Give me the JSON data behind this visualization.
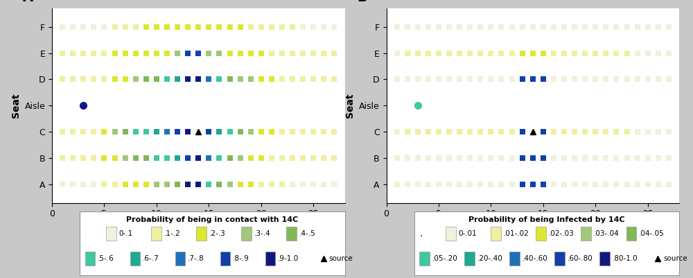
{
  "background_color": "#c8c8c8",
  "panel_background": "#ffffff",
  "seat_y": {
    "A": 0,
    "B": 1,
    "C": 2,
    "Aisle": 3,
    "D": 4,
    "E": 5,
    "F": 6
  },
  "seat_labels": [
    "A",
    "B",
    "C",
    "Aisle",
    "D",
    "E",
    "F"
  ],
  "rows": [
    1,
    2,
    3,
    4,
    5,
    6,
    7,
    8,
    9,
    10,
    11,
    12,
    13,
    14,
    15,
    16,
    17,
    18,
    19,
    20,
    21,
    22,
    23,
    24,
    25,
    26,
    27
  ],
  "xlim": [
    0,
    28
  ],
  "ylim": [
    -0.7,
    6.7
  ],
  "contact_colors": {
    "0-.1": "#f0f0dc",
    "0.1-.2": "#eef0a0",
    "0.2-.3": "#dce830",
    "0.3-.4": "#a0c878",
    "0.4-.5": "#80b858",
    "0.5-.6": "#40c8a0",
    "0.6-.7": "#20a890",
    "0.7-.8": "#2070b8",
    "0.8-.9": "#1040a8",
    "0.9-1.0": "#101880"
  },
  "infected_colors": {
    "0-.01": "#f0f0dc",
    "0.01-.02": "#eef0a0",
    "0.02-.03": "#dce830",
    "0.03-.04": "#a0c878",
    "0.04-.05": "#80b858",
    "0.05-.20": "#40c8a0",
    "0.20-.40": "#20a890",
    "0.40-.60": "#2070b8",
    "0.60-.80": "#1040a8",
    "0.80-1.0": "#101880"
  },
  "panel_A": {
    "title": "A",
    "source_row": 14,
    "source_seat": "C",
    "aisle_marker_row": 3,
    "aisle_color": "#101880",
    "seat_data": {
      "F": {
        "colors_by_row": {
          "1": "0-.1",
          "2": "0-.1",
          "3": "0-.1",
          "4": "0-.1",
          "5": "0-.1",
          "6": "0.1-.2",
          "7": "0.1-.2",
          "8": "0.1-.2",
          "9": "0.2-.3",
          "10": "0.2-.3",
          "11": "0.2-.3",
          "12": "0.2-.3",
          "13": "0.2-.3",
          "14": "0.2-.3",
          "15": "0.2-.3",
          "16": "0.2-.3",
          "17": "0.2-.3",
          "18": "0.2-.3",
          "19": "0.1-.2",
          "20": "0.1-.2",
          "21": "0.1-.2",
          "22": "0.1-.2",
          "23": "0.1-.2",
          "24": "0-.1",
          "25": "0-.1",
          "26": "0-.1",
          "27": "0-.1"
        }
      },
      "E": {
        "colors_by_row": {
          "1": "0.1-.2",
          "2": "0.1-.2",
          "3": "0.1-.2",
          "4": "0.1-.2",
          "5": "0.1-.2",
          "6": "0.2-.3",
          "7": "0.2-.3",
          "8": "0.2-.3",
          "9": "0.2-.3",
          "10": "0.2-.3",
          "11": "0.2-.3",
          "12": "0.3-.4",
          "13": "0.8-.9",
          "14": "0.8-.9",
          "15": "0.3-.4",
          "16": "0.3-.4",
          "17": "0.2-.3",
          "18": "0.2-.3",
          "19": "0.2-.3",
          "20": "0.2-.3",
          "21": "0.1-.2",
          "22": "0.1-.2",
          "23": "0.1-.2",
          "24": "0.1-.2",
          "25": "0.1-.2",
          "26": "0.1-.2",
          "27": "0.1-.2"
        }
      },
      "D": {
        "colors_by_row": {
          "1": "0.1-.2",
          "2": "0.1-.2",
          "3": "0.1-.2",
          "4": "0.1-.2",
          "5": "0.1-.2",
          "6": "0.2-.3",
          "7": "0.2-.3",
          "8": "0.3-.4",
          "9": "0.4-.5",
          "10": "0.4-.5",
          "11": "0.5-.6",
          "12": "0.6-.7",
          "13": "0.9-1.0",
          "14": "0.9-1.0",
          "15": "0.7-.8",
          "16": "0.5-.6",
          "17": "0.4-.5",
          "18": "0.3-.4",
          "19": "0.3-.4",
          "20": "0.2-.3",
          "21": "0.2-.3",
          "22": "0.1-.2",
          "23": "0.1-.2",
          "24": "0.1-.2",
          "25": "0.1-.2",
          "26": "0.1-.2",
          "27": "0.1-.2"
        }
      },
      "C": {
        "colors_by_row": {
          "1": "0.1-.2",
          "2": "0.1-.2",
          "3": "0.1-.2",
          "4": "0.1-.2",
          "5": "0.2-.3",
          "6": "0.3-.4",
          "7": "0.4-.5",
          "8": "0.5-.6",
          "9": "0.5-.6",
          "10": "0.6-.7",
          "11": "0.7-.8",
          "12": "0.8-.9",
          "13": "0.9-1.0",
          "15": "0.8-.9",
          "16": "0.6-.7",
          "17": "0.5-.6",
          "18": "0.4-.5",
          "19": "0.3-.4",
          "20": "0.2-.3",
          "21": "0.2-.3",
          "22": "0.1-.2",
          "23": "0.1-.2",
          "24": "0.1-.2",
          "25": "0.1-.2",
          "26": "0.1-.2",
          "27": "0.1-.2"
        }
      },
      "B": {
        "colors_by_row": {
          "1": "0.1-.2",
          "2": "0.1-.2",
          "3": "0.1-.2",
          "4": "0.1-.2",
          "5": "0.2-.3",
          "6": "0.2-.3",
          "7": "0.3-.4",
          "8": "0.4-.5",
          "9": "0.4-.5",
          "10": "0.5-.6",
          "11": "0.5-.6",
          "12": "0.6-.7",
          "13": "0.8-.9",
          "14": "0.9-1.0",
          "15": "0.7-.8",
          "16": "0.5-.6",
          "17": "0.4-.5",
          "18": "0.3-.4",
          "19": "0.2-.3",
          "20": "0.2-.3",
          "21": "0.1-.2",
          "22": "0.1-.2",
          "23": "0.1-.2",
          "24": "0.1-.2",
          "25": "0.1-.2",
          "26": "0.1-.2",
          "27": "0.1-.2"
        }
      },
      "A": {
        "colors_by_row": {
          "1": "0-.1",
          "2": "0-.1",
          "3": "0-.1",
          "4": "0-.1",
          "5": "0.1-.2",
          "6": "0.1-.2",
          "7": "0.2-.3",
          "8": "0.2-.3",
          "9": "0.2-.3",
          "10": "0.3-.4",
          "11": "0.3-.4",
          "12": "0.4-.5",
          "13": "0.9-1.0",
          "14": "0.9-1.0",
          "15": "0.5-.6",
          "16": "0.4-.5",
          "17": "0.3-.4",
          "18": "0.2-.3",
          "19": "0.2-.3",
          "20": "0.1-.2",
          "21": "0.1-.2",
          "22": "0.1-.2",
          "23": "0-.1",
          "24": "0-.1",
          "25": "0-.1",
          "26": "0-.1",
          "27": "0-.1"
        }
      }
    }
  },
  "panel_B": {
    "title": "B",
    "source_row": 14,
    "source_seat": "C",
    "aisle_marker_row": 3,
    "aisle_color": "#40c8a0",
    "seat_data": {
      "F": {
        "colors_by_row": {
          "1": "0-.01",
          "2": "0-.01",
          "3": "0-.01",
          "4": "0-.01",
          "5": "0-.01",
          "6": "0-.01",
          "7": "0-.01",
          "8": "0-.01",
          "9": "0-.01",
          "10": "0-.01",
          "11": "0-.01",
          "12": "0-.01",
          "13": "0-.01",
          "14": "0-.01",
          "15": "0-.01",
          "16": "0-.01",
          "17": "0-.01",
          "18": "0-.01",
          "19": "0-.01",
          "20": "0-.01",
          "21": "0-.01",
          "22": "0-.01",
          "23": "0-.01",
          "24": "0-.01",
          "25": "0-.01",
          "26": "0-.01",
          "27": "0-.01"
        }
      },
      "E": {
        "colors_by_row": {
          "1": "0-.01",
          "2": "0.01-.02",
          "3": "0.01-.02",
          "4": "0.01-.02",
          "5": "0.01-.02",
          "6": "0.01-.02",
          "7": "0.01-.02",
          "8": "0.01-.02",
          "9": "0.01-.02",
          "10": "0.01-.02",
          "11": "0.01-.02",
          "12": "0.01-.02",
          "13": "0.02-.03",
          "14": "0.02-.03",
          "15": "0.02-.03",
          "16": "0.01-.02",
          "17": "0.01-.02",
          "18": "0.01-.02",
          "19": "0.01-.02",
          "20": "0.01-.02",
          "21": "0.01-.02",
          "22": "0.01-.02",
          "23": "0.01-.02",
          "24": "0-.01",
          "25": "0-.01",
          "26": "0-.01",
          "27": "0-.01"
        }
      },
      "D": {
        "colors_by_row": {
          "1": "0-.01",
          "2": "0-.01",
          "3": "0-.01",
          "4": "0-.01",
          "5": "0-.01",
          "6": "0-.01",
          "7": "0-.01",
          "8": "0-.01",
          "9": "0-.01",
          "10": "0-.01",
          "11": "0-.01",
          "12": "0-.01",
          "13": "0.60-.80",
          "14": "0.60-.80",
          "15": "0.60-.80",
          "16": "0-.01",
          "17": "0-.01",
          "18": "0-.01",
          "19": "0-.01",
          "20": "0-.01",
          "21": "0-.01",
          "22": "0-.01",
          "23": "0-.01",
          "24": "0-.01",
          "25": "0-.01",
          "26": "0-.01",
          "27": "0-.01"
        }
      },
      "C": {
        "colors_by_row": {
          "1": "0-.01",
          "2": "0.01-.02",
          "3": "0.01-.02",
          "4": "0.01-.02",
          "5": "0.01-.02",
          "6": "0.01-.02",
          "7": "0.01-.02",
          "8": "0.01-.02",
          "9": "0.01-.02",
          "10": "0.01-.02",
          "11": "0.01-.02",
          "12": "0.01-.02",
          "13": "0.60-.80",
          "15": "0.60-.80",
          "16": "0.01-.02",
          "17": "0.01-.02",
          "18": "0.01-.02",
          "19": "0.01-.02",
          "20": "0.01-.02",
          "21": "0.01-.02",
          "22": "0.01-.02",
          "23": "0.01-.02",
          "24": "0-.01",
          "25": "0-.01",
          "26": "0-.01",
          "27": "0-.01"
        }
      },
      "B": {
        "colors_by_row": {
          "1": "0-.01",
          "2": "0-.01",
          "3": "0-.01",
          "4": "0-.01",
          "5": "0-.01",
          "6": "0-.01",
          "7": "0-.01",
          "8": "0-.01",
          "9": "0-.01",
          "10": "0-.01",
          "11": "0-.01",
          "12": "0-.01",
          "13": "0.60-.80",
          "14": "0.60-.80",
          "15": "0.60-.80",
          "16": "0-.01",
          "17": "0-.01",
          "18": "0-.01",
          "19": "0-.01",
          "20": "0-.01",
          "21": "0-.01",
          "22": "0-.01",
          "23": "0-.01",
          "24": "0-.01",
          "25": "0-.01",
          "26": "0-.01",
          "27": "0-.01"
        }
      },
      "A": {
        "colors_by_row": {
          "1": "0-.01",
          "2": "0-.01",
          "3": "0-.01",
          "4": "0-.01",
          "5": "0-.01",
          "6": "0-.01",
          "7": "0-.01",
          "8": "0-.01",
          "9": "0-.01",
          "10": "0-.01",
          "11": "0-.01",
          "12": "0-.01",
          "13": "0.60-.80",
          "14": "0.60-.80",
          "15": "0.60-.80",
          "16": "0-.01",
          "17": "0-.01",
          "18": "0-.01",
          "19": "0-.01",
          "20": "0-.01",
          "21": "0-.01",
          "22": "0-.01",
          "23": "0-.01",
          "24": "0-.01",
          "25": "0-.01",
          "26": "0-.01",
          "27": "0-.01"
        }
      }
    }
  },
  "legend_A_row1": [
    [
      "0-.1",
      "0-.1"
    ],
    [
      "0.1-.2",
      ".1-.2"
    ],
    [
      "0.2-.3",
      ".2-.3"
    ],
    [
      "0.3-.4",
      ".3-.4"
    ],
    [
      "0.4-.5",
      ".4-.5"
    ]
  ],
  "legend_A_row2": [
    [
      "0.5-.6",
      ".5-.6"
    ],
    [
      "0.6-.7",
      ".6-.7"
    ],
    [
      "0.7-.8",
      ".7-.8"
    ],
    [
      "0.8-.9",
      ".8-.9"
    ],
    [
      "0.9-1.0",
      ".9-1.0"
    ]
  ],
  "legend_B_row1": [
    [
      "0-.01",
      "0-.01"
    ],
    [
      "0.01-.02",
      ".01-.02"
    ],
    [
      "0.02-.03",
      ".02-.03"
    ],
    [
      "0.03-.04",
      ".03-.04"
    ],
    [
      "0.04-.05",
      ".04-.05"
    ]
  ],
  "legend_B_row2": [
    [
      "0.05-.20",
      ".05-.20"
    ],
    [
      "0.20-.40",
      ".20-.40"
    ],
    [
      "0.40-.60",
      ".40-.60"
    ],
    [
      "0.60-.80",
      ".60-.80"
    ],
    [
      "0.80-1.0",
      ".80-1.0"
    ]
  ]
}
